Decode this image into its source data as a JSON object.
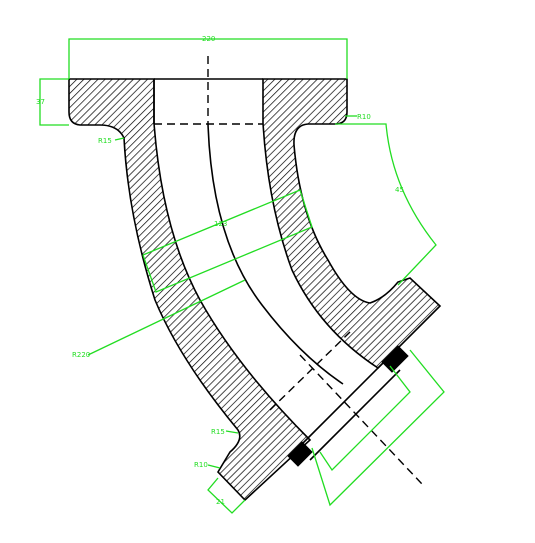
{
  "colors": {
    "dimension": "#22dd22",
    "outline": "#000000",
    "background": "#ffffff"
  },
  "dimensions": {
    "top_flange_width": "220",
    "flange_thickness": "37",
    "radius_bend": "R220",
    "radius_fillet_top_left": "R15",
    "radius_fillet_top_right": "R10",
    "radius_fillet_bottom_outer": "R15",
    "radius_fillet_bottom_inner": "R10",
    "angle": "45",
    "bore": "123",
    "bottom_flange_thickness": "21"
  }
}
